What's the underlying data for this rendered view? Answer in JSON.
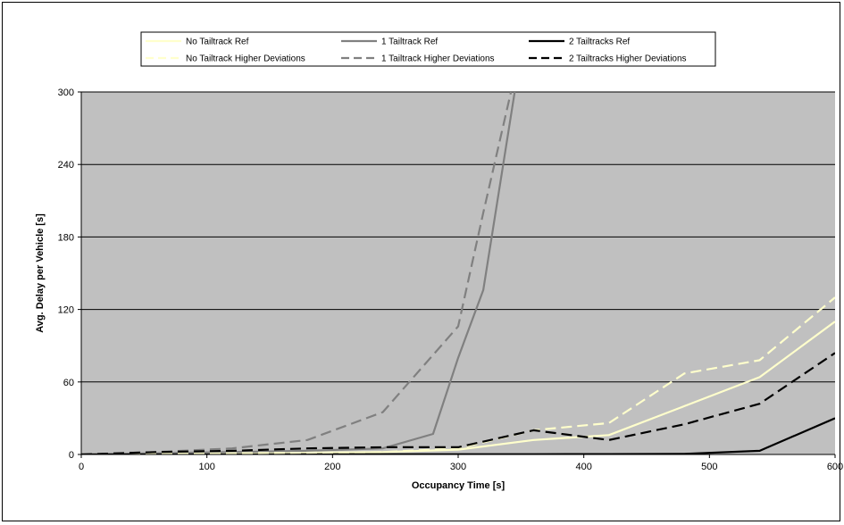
{
  "chart_data": {
    "type": "line",
    "title": "",
    "xlabel": "Occupancy Time [s]",
    "ylabel": "Avg. Delay per Vehicle [s]",
    "xlim": [
      0,
      600
    ],
    "ylim": [
      0,
      300
    ],
    "xticks": [
      0,
      100,
      200,
      300,
      400,
      500,
      600
    ],
    "yticks": [
      0,
      60,
      120,
      180,
      240,
      300
    ],
    "grid": true,
    "legend_position": "top",
    "plot_background": "#c0c0c0",
    "series": [
      {
        "name": "No Tailtrack Ref",
        "color": "#ffffcc",
        "dash": "solid",
        "x": [
          0,
          60,
          120,
          180,
          240,
          300,
          360,
          420,
          480,
          540,
          600
        ],
        "y": [
          0,
          0.5,
          1,
          1.5,
          2,
          4,
          12,
          16,
          40,
          64,
          110
        ]
      },
      {
        "name": "1 Tailtrack Ref",
        "color": "#808080",
        "dash": "solid",
        "x": [
          0,
          60,
          120,
          180,
          240,
          280,
          300,
          320,
          345
        ],
        "y": [
          0,
          1,
          2,
          3,
          5,
          17,
          80,
          136,
          300
        ]
      },
      {
        "name": "2 Tailtracks Ref",
        "color": "#000000",
        "dash": "solid",
        "x": [
          0,
          120,
          240,
          360,
          420,
          480,
          540,
          600
        ],
        "y": [
          0,
          0,
          0.2,
          0.2,
          0.3,
          0.5,
          3,
          30
        ]
      },
      {
        "name": "No Tailtrack Higher Deviations",
        "color": "#ffffcc",
        "dash": "dashed",
        "x": [
          0,
          60,
          120,
          180,
          240,
          300,
          360,
          420,
          480,
          540,
          600
        ],
        "y": [
          0,
          0.5,
          1,
          1.5,
          2,
          5,
          20,
          26,
          67,
          78,
          130
        ]
      },
      {
        "name": "1 Tailtrack Higher Deviations",
        "color": "#808080",
        "dash": "dashed",
        "x": [
          0,
          60,
          120,
          180,
          240,
          300,
          320,
          342
        ],
        "y": [
          0,
          2,
          5,
          12,
          35,
          106,
          200,
          300
        ]
      },
      {
        "name": "2 Tailtracks Higher Deviations",
        "color": "#000000",
        "dash": "dashed",
        "x": [
          0,
          60,
          120,
          180,
          240,
          300,
          360,
          420,
          480,
          540,
          600
        ],
        "y": [
          0,
          2,
          3,
          5,
          6,
          6,
          20,
          12,
          25,
          42,
          84
        ]
      }
    ]
  }
}
